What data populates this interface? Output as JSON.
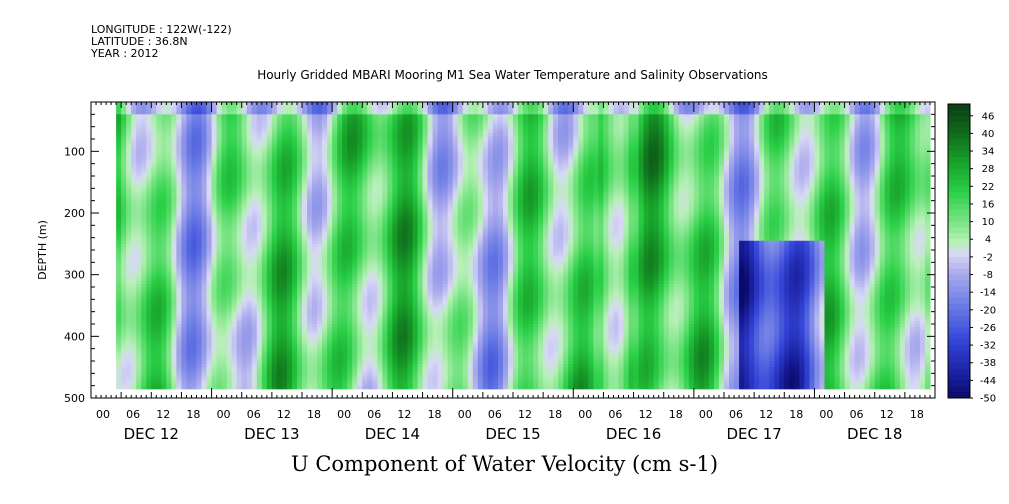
{
  "header": {
    "longitude": "LONGITUDE : 122W(-122)",
    "latitude": "LATITUDE : 36.8N",
    "year": "YEAR : 2012",
    "subtitle": "Hourly Gridded MBARI Mooring M1 Sea Water Temperature and Salinity Observations"
  },
  "chart_data": {
    "type": "heatmap",
    "title": "U Component of Water Velocity (cm s-1)",
    "ylabel": "DEPTH (m)",
    "xlabel": "",
    "y_axis": {
      "range": [
        500,
        20
      ],
      "inverted": true,
      "ticks": [
        100,
        200,
        300,
        400,
        500
      ]
    },
    "x_axis": {
      "start_hour_label": "00",
      "hour_ticks": [
        "00",
        "06",
        "12",
        "18",
        "00",
        "06",
        "12",
        "18",
        "00",
        "06",
        "12",
        "18",
        "00",
        "06",
        "12",
        "18",
        "00",
        "06",
        "12",
        "18",
        "00",
        "06",
        "12",
        "18",
        "00",
        "06",
        "12",
        "18"
      ],
      "day_labels": [
        "DEC 12",
        "DEC 13",
        "DEC 14",
        "DEC 15",
        "DEC 16",
        "DEC 17",
        "DEC 18"
      ]
    },
    "data_extent": {
      "first_hour": 5,
      "last_hour": 167,
      "min_depth": 20,
      "max_depth": 485
    },
    "colorbar": {
      "range": [
        -50,
        50
      ],
      "labels": [
        "46",
        "40",
        "34",
        "28",
        "22",
        "16",
        "10",
        "4",
        "-2",
        "-8",
        "-14",
        "-20",
        "-26",
        "-32",
        "-38",
        "-44",
        "-50"
      ],
      "stops": [
        {
          "value": 50,
          "color": "#0a3d12"
        },
        {
          "value": 40,
          "color": "#0f6b1c"
        },
        {
          "value": 30,
          "color": "#18a22a"
        },
        {
          "value": 20,
          "color": "#2bd048"
        },
        {
          "value": 10,
          "color": "#7ae484"
        },
        {
          "value": 3,
          "color": "#b8f0b8"
        },
        {
          "value": -1,
          "color": "#d8d8f6"
        },
        {
          "value": -8,
          "color": "#a8a8ec"
        },
        {
          "value": -18,
          "color": "#6f7fe6"
        },
        {
          "value": -30,
          "color": "#3546d8"
        },
        {
          "value": -42,
          "color": "#1a20a0"
        },
        {
          "value": -50,
          "color": "#0a0a6a"
        }
      ]
    },
    "grid": false,
    "legend": "right colorbar"
  }
}
